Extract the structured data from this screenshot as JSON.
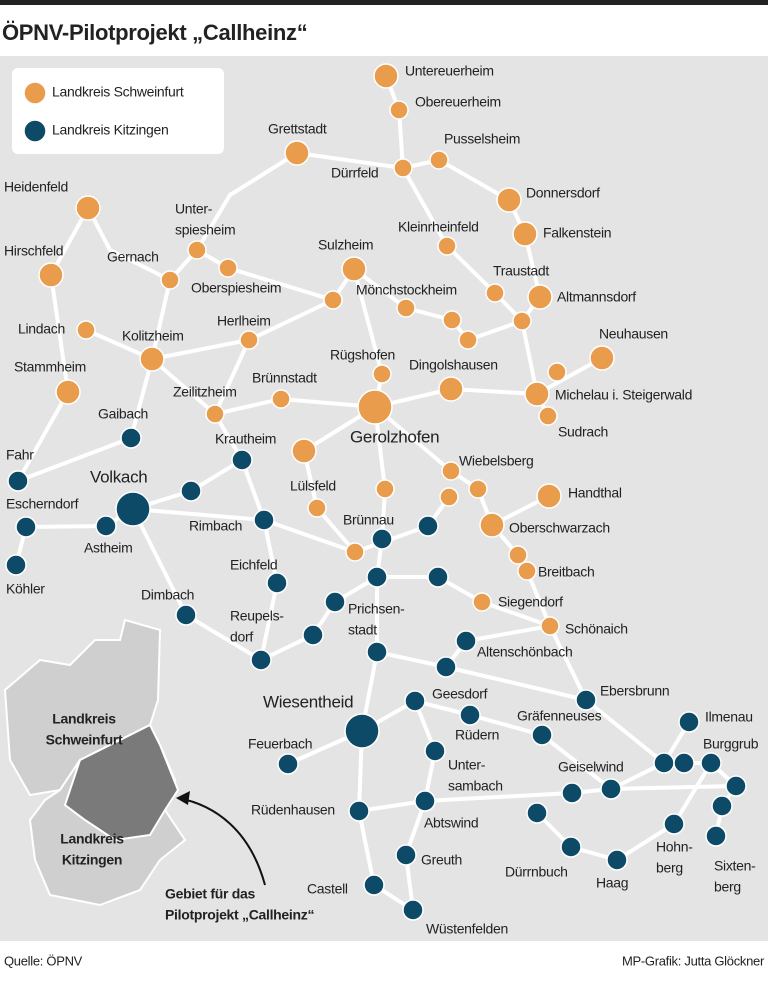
{
  "header": {
    "title": "ÖPNV-Pilotprojekt „Callheinz“"
  },
  "legend": {
    "items": [
      {
        "label": "Landkreis Schweinfurt"
      },
      {
        "label": "Landkreis Kitzingen"
      }
    ]
  },
  "places": [
    "Untereuerheim",
    "Obereuerheim",
    "Pusselsheim",
    "Dürrfeld",
    "Grettstadt",
    "Donnersdorf",
    "Falkenstein",
    "Kleinrheinfeld",
    "Heidenfeld",
    [
      "Unter-",
      "spiesheim"
    ],
    "Gernach",
    "Oberspiesheim",
    "Hirschfeld",
    "Sulzheim",
    "Traustadt",
    "Altmannsdorf",
    "Mönchstockheim",
    "Lindach",
    "Kolitzheim",
    "Herlheim",
    "Neuhausen",
    "Rügshofen",
    "Dingolshausen",
    "Michelau i. Steigerwald",
    "Sudrach",
    "Stammheim",
    "Zeilitzheim",
    "Brünnstadt",
    "Gerolzhofen",
    "Krautheim",
    "Gaibach",
    "Fahr",
    "Volkach",
    "Lülsfeld",
    "Wiebelsberg",
    "Handthal",
    "Escherndorf",
    "Rimbach",
    "Brünnau",
    "Oberschwarzach",
    "Astheim",
    "Köhler",
    "Eichfeld",
    "Breitbach",
    "Dimbach",
    [
      "Prichsen-",
      "stadt"
    ],
    "Siegendorf",
    [
      "Reupels-",
      "dorf"
    ],
    "Schönaich",
    "Altenschönbach",
    "Ebersbrunn",
    "Geesdorf",
    "Wiesentheid",
    "Gräfenneuses",
    "Ilmenau",
    "Rüdern",
    "Burggrub",
    "Feuerbach",
    [
      "Unter-",
      "sambach"
    ],
    "Geiselwind",
    "Rüdenhausen",
    "Abtswind",
    [
      "Hohn-",
      "berg"
    ],
    "Greuth",
    [
      "Sixten-",
      "berg"
    ],
    "Dürrnbuch",
    "Haag",
    "Castell",
    "Wüstenfelden"
  ],
  "inset": {
    "districts": [
      [
        "Landkreis",
        "Schweinfurt"
      ],
      [
        "Landkreis",
        "Kitzingen"
      ]
    ],
    "note": [
      "Gebiet für das",
      "Pilotprojekt „Callheinz“"
    ]
  },
  "footer": {
    "source": "Quelle: ÖPNV",
    "credit": "MP-Grafik: Jutta Glöckner"
  }
}
